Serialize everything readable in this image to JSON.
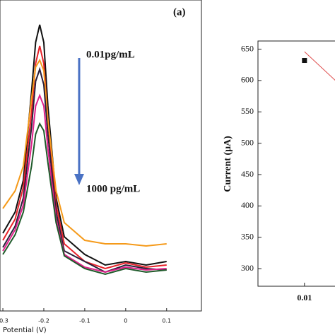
{
  "chart_data": [
    {
      "type": "line",
      "annotations": [
        "(a)",
        "0.01pg/mL",
        "1000 pg/mL"
      ],
      "xlabel": "Potential (V)",
      "x": [
        -0.3,
        -0.27,
        -0.25,
        -0.23,
        -0.22,
        -0.21,
        -0.2,
        -0.19,
        -0.17,
        -0.15,
        -0.1,
        -0.05,
        0,
        0.05,
        0.1
      ],
      "xlim": [
        -0.307,
        0.185
      ],
      "xticks": [
        -0.3,
        -0.2,
        -0.1,
        0,
        0.1
      ],
      "ylim": [
        0,
        440
      ],
      "series": [
        {
          "color": "#111111",
          "values": [
            110,
            140,
            185,
            310,
            380,
            405,
            380,
            290,
            160,
            105,
            80,
            65,
            70,
            65,
            70
          ]
        },
        {
          "color": "#e8222a",
          "values": [
            100,
            130,
            175,
            280,
            350,
            375,
            350,
            270,
            150,
            95,
            70,
            60,
            68,
            62,
            65
          ]
        },
        {
          "color": "#f59a1a",
          "values": [
            145,
            170,
            205,
            300,
            345,
            355,
            340,
            270,
            170,
            125,
            100,
            95,
            95,
            92,
            95
          ]
        },
        {
          "color": "#2a1f3a",
          "values": [
            90,
            120,
            160,
            260,
            325,
            342,
            320,
            250,
            140,
            85,
            70,
            55,
            65,
            60,
            58
          ]
        },
        {
          "color": "#e0208a",
          "values": [
            85,
            115,
            150,
            235,
            290,
            305,
            290,
            230,
            130,
            80,
            62,
            55,
            62,
            58,
            60
          ]
        },
        {
          "color": "#1e5a2a",
          "values": [
            80,
            108,
            140,
            205,
            250,
            265,
            255,
            210,
            125,
            78,
            60,
            52,
            60,
            55,
            58
          ]
        }
      ]
    },
    {
      "type": "scatter",
      "ylabel": "Current (μA)",
      "x": [
        0.01
      ],
      "values": [
        632
      ],
      "color": "#111111",
      "fit": {
        "color": "#e05050",
        "x": [
          0.01,
          0.032
        ],
        "values": [
          646,
          596
        ]
      },
      "log_x": true,
      "xlim": [
        0.002,
        0.1
      ],
      "xticks": [
        0.01
      ],
      "ylim": [
        272,
        663
      ],
      "yticks": [
        300,
        350,
        400,
        450,
        500,
        550,
        600,
        650
      ]
    }
  ]
}
